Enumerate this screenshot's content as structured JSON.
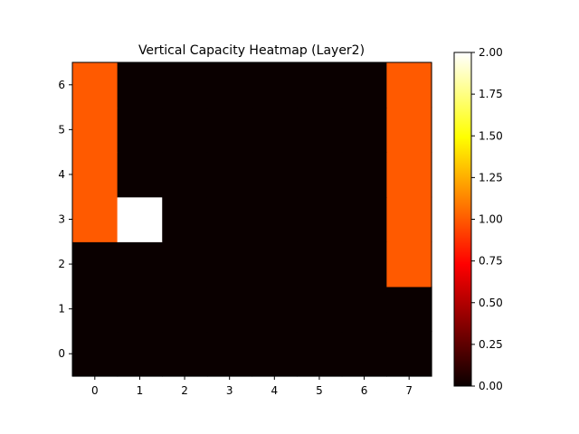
{
  "chart_data": {
    "type": "heatmap",
    "title": "Vertical Capacity Heatmap (Layer2)",
    "xlabel": "",
    "ylabel": "",
    "x_ticks": [
      "0",
      "1",
      "2",
      "3",
      "4",
      "5",
      "6",
      "7"
    ],
    "y_ticks": [
      "0",
      "1",
      "2",
      "3",
      "4",
      "5",
      "6"
    ],
    "colormap": "hot",
    "vmin": 0,
    "vmax": 2,
    "colorbar_ticks": [
      "0.00",
      "0.25",
      "0.50",
      "0.75",
      "1.00",
      "1.25",
      "1.50",
      "1.75",
      "2.00"
    ],
    "rows_from_y0": [
      [
        0,
        0,
        0,
        0,
        0,
        0,
        0,
        0
      ],
      [
        0,
        0,
        0,
        0,
        0,
        0,
        0,
        0
      ],
      [
        0,
        0,
        0,
        0,
        0,
        0,
        0,
        1
      ],
      [
        1,
        2,
        0,
        0,
        0,
        0,
        0,
        1
      ],
      [
        1,
        0,
        0,
        0,
        0,
        0,
        0,
        1
      ],
      [
        1,
        0,
        0,
        0,
        0,
        0,
        0,
        1
      ],
      [
        1,
        0,
        0,
        0,
        0,
        0,
        0,
        1
      ]
    ]
  }
}
